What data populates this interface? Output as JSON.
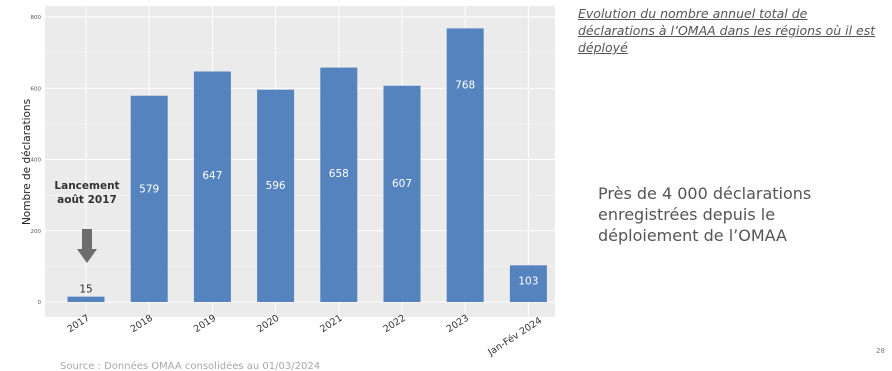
{
  "caption": "Evolution du nombre annuel total de déclarations à l’OMAA dans les régions où il est déployé",
  "summary": "Près de 4 000 déclarations enregistrées depuis le déploiement de l’OMAA",
  "source": "Source : Données OMAA consolidées au 01/03/2024",
  "page_number": "28",
  "colors": {
    "bar": "#5583bd",
    "panel": "#ebebeb",
    "arrow": "#6d6d6d"
  },
  "chart_data": {
    "type": "bar",
    "categories": [
      "2017",
      "2018",
      "2019",
      "2020",
      "2021",
      "2022",
      "2023",
      "Jan-Fév 2024"
    ],
    "values": [
      15,
      579,
      647,
      596,
      658,
      607,
      768,
      103
    ],
    "ylabel": "Nombre de déclarations",
    "ylim": [
      0,
      800
    ],
    "yticks": [
      0,
      200,
      400,
      600,
      800
    ],
    "grid": true,
    "annotation": "Lancement août 2017"
  }
}
